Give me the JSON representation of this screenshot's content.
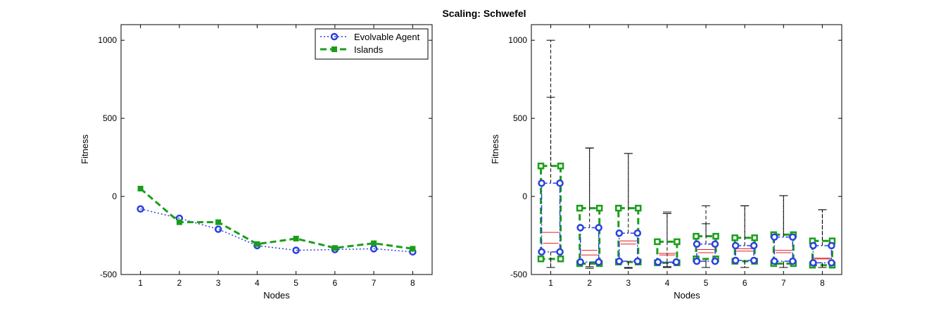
{
  "title": "Scaling: Schwefel",
  "colors": {
    "agent": "#2a3fe0",
    "islands": "#1a9e1a",
    "median": "#dd2020",
    "whisker": "#000000",
    "axes": "#000000"
  },
  "chart_data": [
    {
      "type": "line",
      "xlabel": "Nodes",
      "ylabel": "Fitness",
      "xlim": [
        0.5,
        8.5
      ],
      "ylim": [
        -500,
        1100
      ],
      "xticks": [
        "1",
        "2",
        "3",
        "4",
        "5",
        "6",
        "7",
        "8"
      ],
      "yticks": [
        "-500",
        "0",
        "500",
        "1000"
      ],
      "x": [
        1,
        2,
        3,
        4,
        5,
        6,
        7,
        8
      ],
      "legend_position": "top-right",
      "series": [
        {
          "name": "Evolvable Agent",
          "values": [
            -80,
            -140,
            -210,
            -315,
            -345,
            -340,
            -335,
            -355
          ]
        },
        {
          "name": "Islands",
          "values": [
            50,
            -165,
            -165,
            -305,
            -270,
            -330,
            -300,
            -335
          ]
        }
      ]
    },
    {
      "type": "box",
      "xlabel": "Nodes",
      "ylabel": "Fitness",
      "xlim": [
        0.5,
        8.5
      ],
      "ylim": [
        -500,
        1100
      ],
      "xticks": [
        "1",
        "2",
        "3",
        "4",
        "5",
        "6",
        "7",
        "8"
      ],
      "yticks": [
        "-500",
        "0",
        "500",
        "1000"
      ],
      "x": [
        1,
        2,
        3,
        4,
        5,
        6,
        7,
        8
      ],
      "series": [
        {
          "name": "Evolvable Agent",
          "q1": [
            -355,
            -420,
            -415,
            -420,
            -415,
            -410,
            -415,
            -425
          ],
          "median": [
            -300,
            -345,
            -305,
            -375,
            -360,
            -335,
            -360,
            -400
          ],
          "q3": [
            85,
            -200,
            -235,
            -420,
            -305,
            -315,
            -260,
            -315
          ],
          "min": [
            -455,
            -460,
            -460,
            -455,
            -455,
            -455,
            -455,
            -455
          ],
          "max": [
            635,
            310,
            275,
            -100,
            -175,
            -60,
            5,
            -85
          ]
        },
        {
          "name": "Islands",
          "q1": [
            -400,
            -430,
            -420,
            -425,
            -400,
            -415,
            -430,
            -440
          ],
          "median": [
            -230,
            -375,
            -285,
            -365,
            -340,
            -350,
            -345,
            -395
          ],
          "q3": [
            195,
            -75,
            -75,
            -290,
            -255,
            -265,
            -245,
            -285
          ],
          "min": [
            -455,
            -450,
            -455,
            -450,
            -455,
            -455,
            -455,
            -455
          ],
          "max": [
            1000,
            310,
            275,
            -110,
            -60,
            -60,
            5,
            -85
          ]
        }
      ]
    }
  ]
}
